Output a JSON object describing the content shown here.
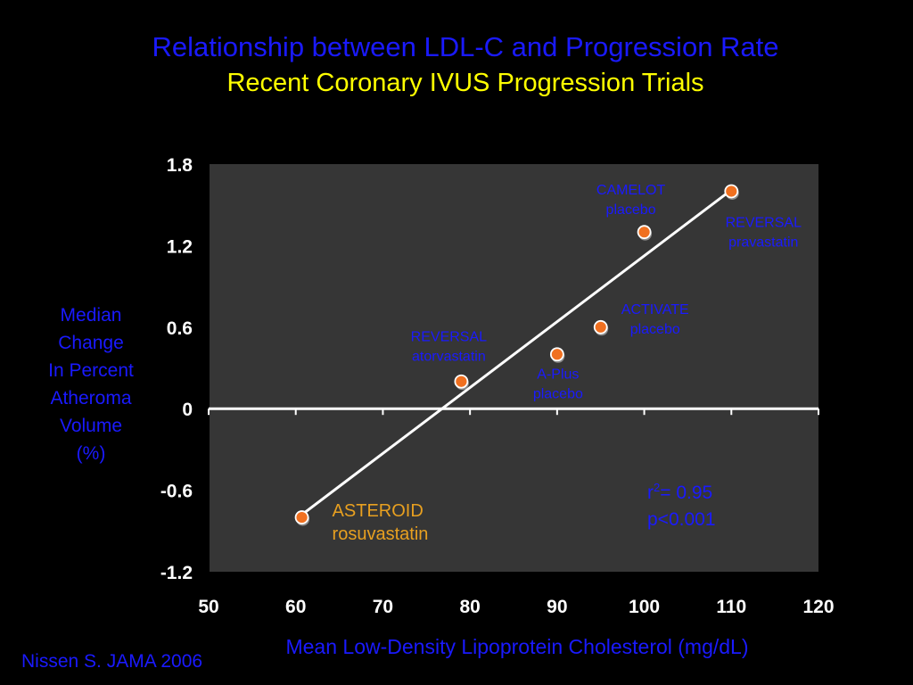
{
  "title": "Relationship between LDL-C and Progression Rate",
  "subtitle": "Recent Coronary IVUS Progression Trials",
  "source": "Nissen S.  JAMA 2006",
  "stats": {
    "r_prefix": "r",
    "r_sup": "2",
    "r_value": "= 0.95",
    "p_value": "p<0.001"
  },
  "colors": {
    "background": "#000000",
    "plot_area": "#363636",
    "title": "#1a1aff",
    "subtitle": "#ffff00",
    "point": "#f07020",
    "highlight_label": "#e8a020",
    "fit_line": "#ffffff"
  },
  "chart_data": {
    "type": "scatter",
    "xlabel": "Mean Low-Density Lipoprotein Cholesterol (mg/dL)",
    "ylabel": [
      "Median",
      "Change",
      "In Percent",
      "Atheroma",
      "Volume",
      "(%)"
    ],
    "xlim": [
      50,
      120
    ],
    "ylim": [
      -1.2,
      1.8
    ],
    "xticks": [
      50,
      60,
      70,
      80,
      90,
      100,
      110,
      120
    ],
    "yticks": [
      -1.2,
      -0.6,
      0,
      0.6,
      1.2,
      1.8
    ],
    "ytick_labels": [
      "-1.2",
      "-0.6",
      "0",
      "0.6",
      "1.2",
      "1.8"
    ],
    "points": [
      {
        "x": 60.7,
        "y": -0.8,
        "label": [
          "ASTEROID",
          "rosuvastatin"
        ],
        "highlight": true
      },
      {
        "x": 79,
        "y": 0.2,
        "label": [
          "REVERSAL",
          "atorvastatin"
        ],
        "highlight": false
      },
      {
        "x": 90,
        "y": 0.4,
        "label": [
          "A-Plus",
          "placebo"
        ],
        "highlight": false
      },
      {
        "x": 95,
        "y": 0.6,
        "label": [
          "ACTIVATE",
          "placebo"
        ],
        "highlight": false
      },
      {
        "x": 100,
        "y": 1.3,
        "label": [
          "CAMELOT",
          "placebo"
        ],
        "highlight": false
      },
      {
        "x": 110,
        "y": 1.6,
        "label": [
          "REVERSAL",
          "pravastatin"
        ],
        "highlight": false
      }
    ],
    "fit_line": {
      "x": [
        60.7,
        110
      ],
      "y": [
        -0.78,
        1.61
      ]
    },
    "grid": false,
    "legend": "none"
  }
}
